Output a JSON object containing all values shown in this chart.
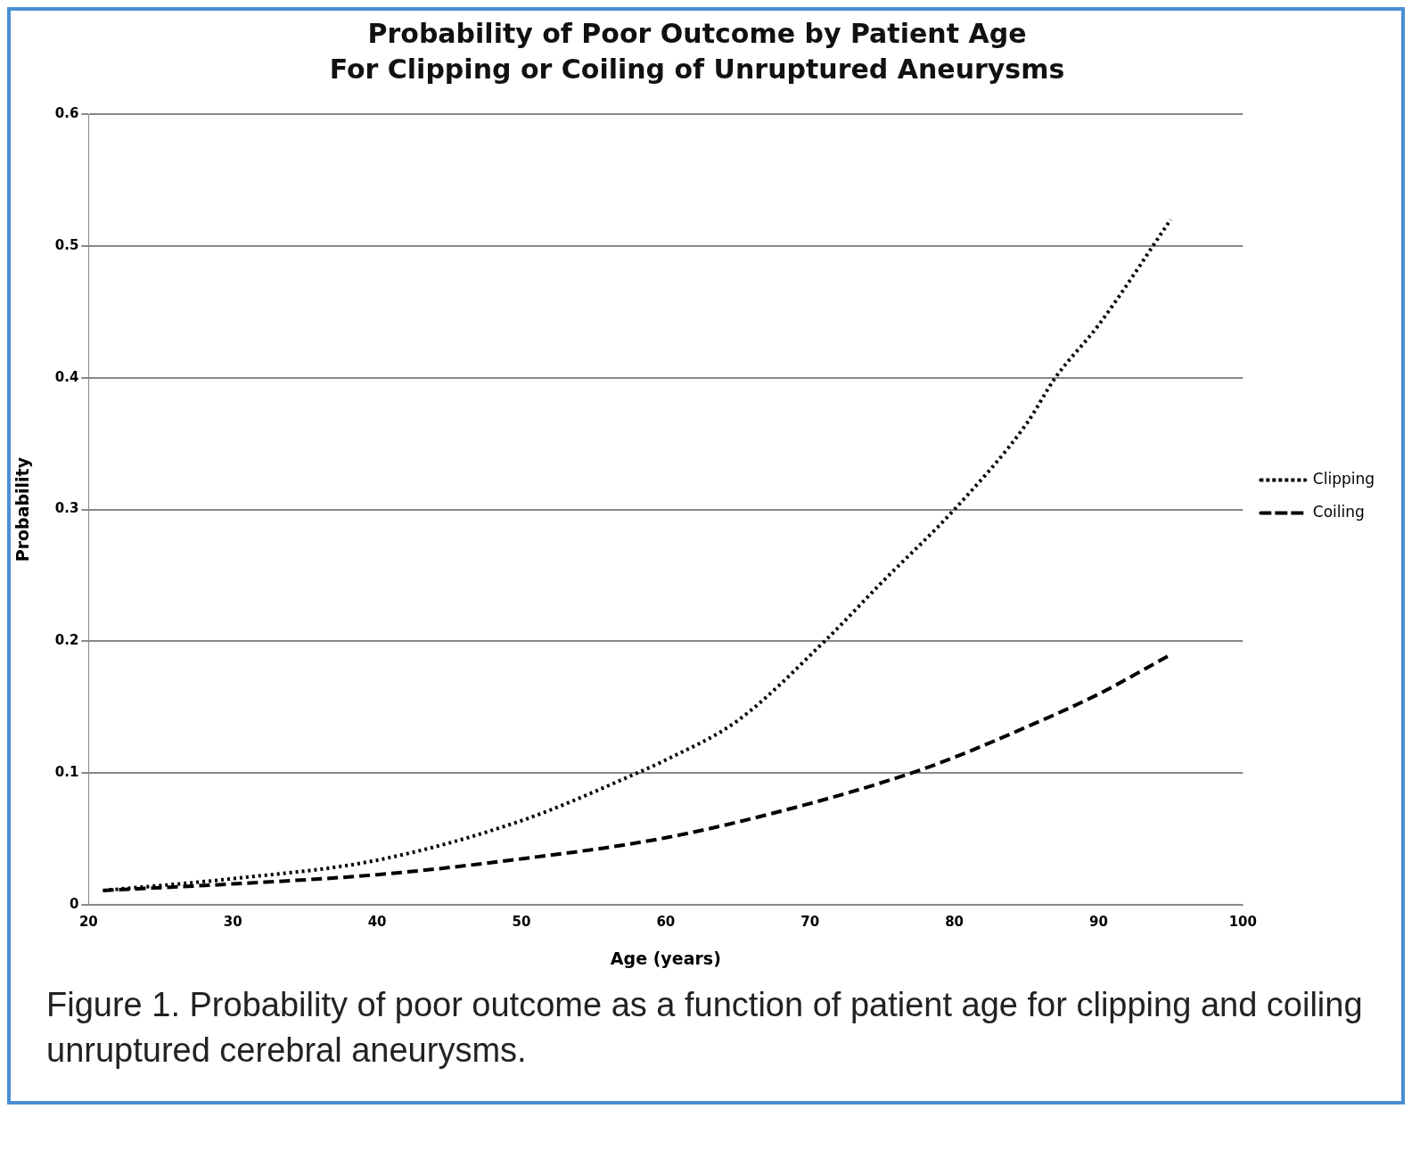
{
  "chart_data": {
    "type": "line",
    "title": "Probability of Poor Outcome by Patient Age",
    "subtitle": "For Clipping or Coiling of Unruptured Aneurysms",
    "xlabel": "Age (years)",
    "ylabel": "Probability",
    "xlim": [
      20,
      100
    ],
    "xticks": [
      20,
      30,
      40,
      50,
      60,
      70,
      80,
      90,
      100
    ],
    "ylim": [
      0,
      0.6
    ],
    "yticks": [
      0,
      0.1,
      0.2,
      0.3,
      0.4,
      0.5,
      0.6
    ],
    "grid": "y",
    "legend": "right",
    "marker": "none",
    "series": [
      {
        "name": "Clipping",
        "color": "#000000",
        "line_style": "dotted",
        "x": [
          21,
          30,
          40,
          50,
          58,
          60,
          65,
          71,
          75,
          80,
          85,
          87,
          90,
          95
        ],
        "values": [
          0.011,
          0.02,
          0.034,
          0.064,
          0.1,
          0.11,
          0.14,
          0.2,
          0.245,
          0.3,
          0.365,
          0.4,
          0.44,
          0.52
        ]
      },
      {
        "name": "Coiling",
        "color": "#000000",
        "line_style": "dashed",
        "x": [
          21,
          30,
          40,
          50,
          60,
          70,
          77,
          80,
          85,
          90,
          95
        ],
        "values": [
          0.011,
          0.016,
          0.023,
          0.035,
          0.051,
          0.077,
          0.1,
          0.112,
          0.135,
          0.16,
          0.19
        ]
      }
    ],
    "annotations": [
      "Figure 1. Probability of poor outcome as a function of patient age for clipping and coiling unruptured cerebral aneurysms."
    ]
  }
}
